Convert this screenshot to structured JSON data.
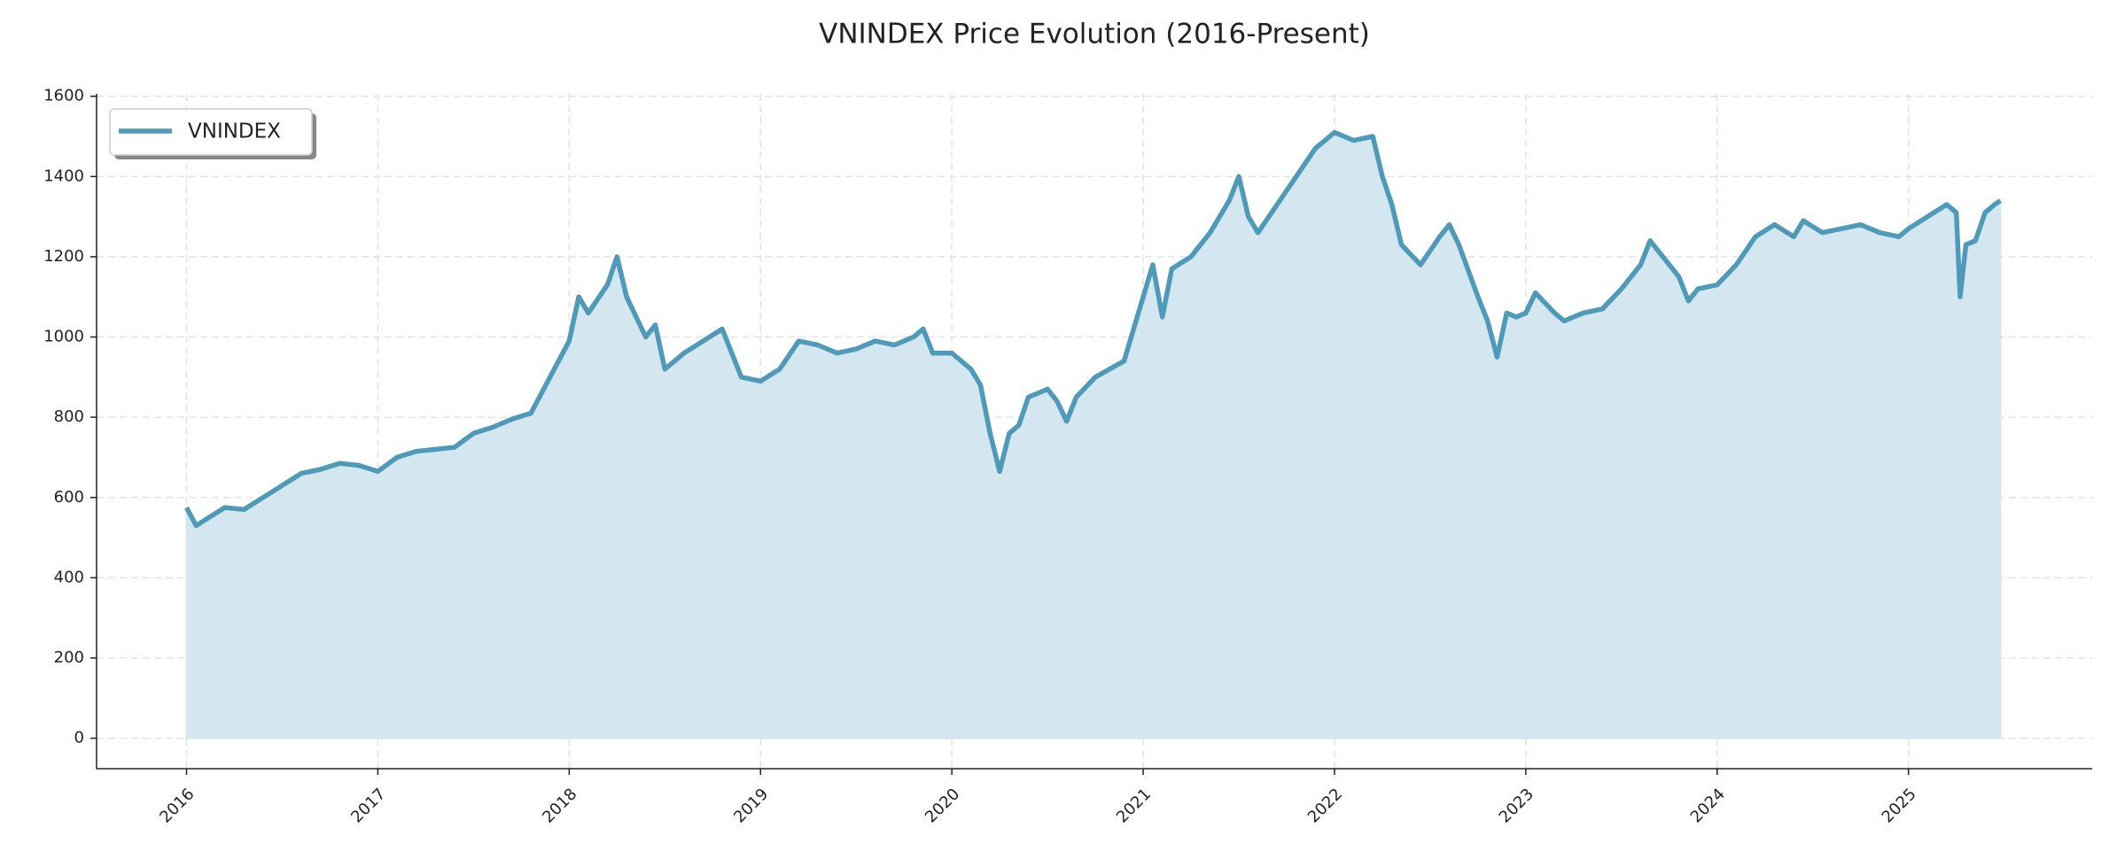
{
  "chart_data": {
    "type": "area",
    "title": "VNINDEX Price Evolution (2016-Present)",
    "x": [
      2016.0,
      2016.05,
      2016.1,
      2016.2,
      2016.3,
      2016.4,
      2016.5,
      2016.6,
      2016.7,
      2016.8,
      2016.9,
      2017.0,
      2017.1,
      2017.2,
      2017.3,
      2017.4,
      2017.5,
      2017.6,
      2017.7,
      2017.8,
      2017.9,
      2018.0,
      2018.05,
      2018.1,
      2018.2,
      2018.25,
      2018.3,
      2018.35,
      2018.4,
      2018.45,
      2018.5,
      2018.6,
      2018.7,
      2018.8,
      2018.85,
      2018.9,
      2019.0,
      2019.1,
      2019.2,
      2019.3,
      2019.4,
      2019.5,
      2019.6,
      2019.7,
      2019.8,
      2019.85,
      2019.9,
      2020.0,
      2020.1,
      2020.15,
      2020.2,
      2020.25,
      2020.3,
      2020.35,
      2020.4,
      2020.5,
      2020.55,
      2020.6,
      2020.65,
      2020.75,
      2020.9,
      2021.0,
      2021.05,
      2021.1,
      2021.15,
      2021.25,
      2021.35,
      2021.45,
      2021.5,
      2021.55,
      2021.6,
      2021.7,
      2021.8,
      2021.9,
      2021.95,
      2022.0,
      2022.1,
      2022.2,
      2022.25,
      2022.3,
      2022.35,
      2022.45,
      2022.55,
      2022.6,
      2022.65,
      2022.75,
      2022.8,
      2022.85,
      2022.9,
      2022.95,
      2023.0,
      2023.05,
      2023.15,
      2023.2,
      2023.3,
      2023.4,
      2023.5,
      2023.6,
      2023.65,
      2023.7,
      2023.8,
      2023.85,
      2023.9,
      2024.0,
      2024.1,
      2024.2,
      2024.3,
      2024.4,
      2024.45,
      2024.55,
      2024.65,
      2024.75,
      2024.85,
      2024.95,
      2025.0,
      2025.1,
      2025.2,
      2025.25,
      2025.27,
      2025.3,
      2025.35,
      2025.4,
      2025.45,
      2025.48
    ],
    "series": [
      {
        "name": "VNINDEX",
        "color": "#4e9ab8",
        "fill_color": "#d4e6ef",
        "values": [
          575,
          530,
          545,
          575,
          570,
          600,
          630,
          660,
          670,
          685,
          680,
          665,
          700,
          715,
          720,
          725,
          760,
          775,
          795,
          810,
          900,
          990,
          1100,
          1060,
          1130,
          1200,
          1100,
          1050,
          1000,
          1030,
          920,
          960,
          990,
          1020,
          960,
          900,
          890,
          920,
          990,
          980,
          960,
          970,
          990,
          980,
          1000,
          1020,
          960,
          960,
          920,
          880,
          760,
          665,
          760,
          780,
          850,
          870,
          840,
          790,
          850,
          900,
          940,
          1100,
          1180,
          1050,
          1170,
          1200,
          1260,
          1340,
          1400,
          1300,
          1260,
          1330,
          1400,
          1470,
          1490,
          1510,
          1490,
          1500,
          1400,
          1330,
          1230,
          1180,
          1250,
          1280,
          1230,
          1100,
          1040,
          950,
          1060,
          1050,
          1060,
          1110,
          1060,
          1040,
          1060,
          1070,
          1120,
          1180,
          1240,
          1210,
          1150,
          1090,
          1120,
          1130,
          1180,
          1250,
          1280,
          1250,
          1290,
          1260,
          1270,
          1280,
          1260,
          1250,
          1270,
          1300,
          1330,
          1310,
          1100,
          1230,
          1240,
          1310,
          1330,
          1340
        ]
      }
    ],
    "xlim": [
      2015.53,
      2025.96
    ],
    "xticks": [
      2016,
      2017,
      2018,
      2019,
      2020,
      2021,
      2022,
      2023,
      2024,
      2025
    ],
    "ylim": [
      -76,
      1606
    ],
    "yticks": [
      0,
      200,
      400,
      600,
      800,
      1000,
      1200,
      1400,
      1600
    ],
    "grid": true,
    "legend": "upper left"
  }
}
